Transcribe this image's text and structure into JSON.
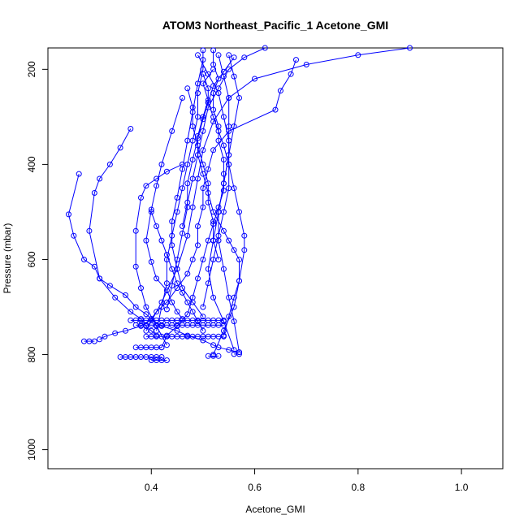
{
  "chart_data": {
    "type": "line",
    "title": "ATOM3 Northeast_Pacific_1 Acetone_GMI",
    "xlabel": "Acetone_GMI",
    "ylabel": "Pressure (mbar)",
    "xlim": [
      0.2,
      1.08
    ],
    "ylim": [
      1040,
      155
    ],
    "y_reversed": true,
    "x_ticks": [
      0.4,
      0.6,
      0.8,
      1.0
    ],
    "x_tick_labels": [
      "0.4",
      "0.6",
      "0.8",
      "1.0"
    ],
    "y_ticks": [
      200,
      400,
      600,
      800,
      1000
    ],
    "y_tick_labels": [
      "200",
      "400",
      "600",
      "800",
      "1000"
    ],
    "color": "#0000ff",
    "marker": "open-circle",
    "grid": false,
    "series": [
      {
        "x": [
          0.68,
          0.67,
          0.65,
          0.64,
          0.55,
          0.52,
          0.51,
          0.5,
          0.5,
          0.49,
          0.49,
          0.48,
          0.47,
          0.45,
          0.43,
          0.41,
          0.4,
          0.38,
          0.35,
          0.33,
          0.31,
          0.3
        ],
        "y": [
          180,
          210,
          245,
          285,
          330,
          370,
          410,
          450,
          490,
          530,
          570,
          600,
          630,
          660,
          690,
          710,
          725,
          740,
          750,
          755,
          762,
          768
        ]
      },
      {
        "x": [
          0.26,
          0.24,
          0.25,
          0.27,
          0.29,
          0.3,
          0.32,
          0.35,
          0.37,
          0.39,
          0.4,
          0.42,
          0.45,
          0.47,
          0.5,
          0.52,
          0.53,
          0.55,
          0.57
        ],
        "y": [
          420,
          505,
          550,
          600,
          615,
          640,
          655,
          675,
          700,
          715,
          725,
          740,
          750,
          760,
          770,
          780,
          785,
          790,
          795
        ]
      },
      {
        "x": [
          0.52,
          0.5,
          0.51,
          0.5,
          0.49,
          0.49,
          0.5,
          0.51,
          0.52,
          0.54,
          0.55,
          0.56,
          0.57,
          0.57,
          0.56,
          0.55,
          0.54
        ],
        "y": [
          200,
          230,
          265,
          300,
          340,
          380,
          420,
          460,
          500,
          540,
          560,
          580,
          600,
          645,
          680,
          720,
          760
        ]
      },
      {
        "x": [
          0.52,
          0.52,
          0.53,
          0.52,
          0.52,
          0.53,
          0.53,
          0.54,
          0.54,
          0.54,
          0.53,
          0.52,
          0.51,
          0.5,
          0.49,
          0.48,
          0.47,
          0.45,
          0.43,
          0.42
        ],
        "y": [
          160,
          190,
          220,
          250,
          285,
          320,
          350,
          390,
          420,
          455,
          490,
          525,
          560,
          600,
          640,
          680,
          715,
          740,
          760,
          785
        ]
      },
      {
        "x": [
          0.5,
          0.5,
          0.49,
          0.49,
          0.48,
          0.47,
          0.46,
          0.45,
          0.44,
          0.43,
          0.43,
          0.42,
          0.41
        ],
        "y": [
          160,
          200,
          250,
          300,
          350,
          400,
          450,
          500,
          550,
          600,
          650,
          700,
          750
        ]
      },
      {
        "x": [
          0.36,
          0.34,
          0.32,
          0.3,
          0.29,
          0.28,
          0.3,
          0.33,
          0.36,
          0.38,
          0.39,
          0.4,
          0.41
        ],
        "y": [
          325,
          365,
          400,
          430,
          460,
          540,
          640,
          680,
          710,
          725,
          740,
          750,
          760
        ]
      },
      {
        "x": [
          0.46,
          0.43,
          0.41,
          0.39,
          0.38,
          0.37,
          0.37,
          0.38,
          0.39,
          0.41,
          0.43
        ],
        "y": [
          400,
          415,
          430,
          445,
          470,
          540,
          615,
          660,
          700,
          740,
          780
        ]
      },
      {
        "x": [
          0.46,
          0.44,
          0.42,
          0.41,
          0.4,
          0.39,
          0.4,
          0.41,
          0.43,
          0.44,
          0.45,
          0.46
        ],
        "y": [
          260,
          330,
          400,
          445,
          495,
          560,
          605,
          640,
          665,
          690,
          710,
          725
        ]
      },
      {
        "x": [
          0.5,
          0.49,
          0.48,
          0.47,
          0.46,
          0.45,
          0.44,
          0.44,
          0.45,
          0.46,
          0.48,
          0.5
        ],
        "y": [
          180,
          230,
          290,
          350,
          410,
          470,
          520,
          570,
          620,
          660,
          690,
          720
        ]
      },
      {
        "x": [
          0.53,
          0.54,
          0.55,
          0.55,
          0.55,
          0.54,
          0.53,
          0.52,
          0.51,
          0.52,
          0.54,
          0.56
        ],
        "y": [
          170,
          215,
          260,
          320,
          380,
          440,
          500,
          560,
          620,
          680,
          730,
          790
        ]
      },
      {
        "x": [
          0.55,
          0.56,
          0.57,
          0.56,
          0.55,
          0.54,
          0.53,
          0.53,
          0.54,
          0.55,
          0.56,
          0.57
        ],
        "y": [
          170,
          215,
          260,
          320,
          380,
          440,
          500,
          560,
          620,
          680,
          730,
          795
        ]
      },
      {
        "x": [
          0.5,
          0.51,
          0.51,
          0.52,
          0.53,
          0.54,
          0.55,
          0.56,
          0.57,
          0.58,
          0.58,
          0.57,
          0.56,
          0.54,
          0.52
        ],
        "y": [
          210,
          240,
          270,
          300,
          330,
          360,
          400,
          450,
          500,
          550,
          580,
          645,
          700,
          750,
          800
        ]
      },
      {
        "x": [
          0.47,
          0.48,
          0.48,
          0.49,
          0.5,
          0.51,
          0.51,
          0.52,
          0.52,
          0.53
        ],
        "y": [
          240,
          280,
          320,
          360,
          400,
          440,
          480,
          520,
          560,
          600
        ]
      },
      {
        "x": [
          0.9,
          0.8,
          0.7,
          0.6,
          0.55,
          0.52,
          0.5,
          0.49,
          0.48,
          0.47,
          0.45,
          0.42,
          0.39
        ],
        "y": [
          155,
          170,
          190,
          220,
          260,
          310,
          370,
          430,
          490,
          550,
          620,
          690,
          750
        ]
      },
      {
        "x": [
          0.62,
          0.58,
          0.55,
          0.53,
          0.51,
          0.5,
          0.49,
          0.48,
          0.47,
          0.46
        ],
        "y": [
          155,
          175,
          200,
          240,
          280,
          330,
          380,
          430,
          480,
          530
        ]
      },
      {
        "x": [
          0.56,
          0.54,
          0.52,
          0.51,
          0.5,
          0.49,
          0.48,
          0.47,
          0.47,
          0.46,
          0.45,
          0.44,
          0.43
        ],
        "y": [
          175,
          205,
          235,
          270,
          305,
          345,
          390,
          440,
          490,
          545,
          600,
          655,
          705
        ]
      },
      {
        "x": [
          0.49,
          0.51,
          0.53,
          0.54,
          0.55,
          0.55,
          0.55,
          0.54,
          0.53,
          0.52,
          0.51,
          0.5
        ],
        "y": [
          170,
          210,
          250,
          300,
          350,
          400,
          450,
          500,
          550,
          600,
          650,
          700
        ]
      },
      {
        "x": [
          0.4,
          0.41,
          0.42,
          0.43,
          0.44,
          0.45,
          0.46,
          0.47,
          0.48,
          0.49,
          0.5
        ],
        "y": [
          500,
          530,
          560,
          590,
          620,
          650,
          670,
          690,
          710,
          730,
          750
        ]
      },
      {
        "x": [
          0.36,
          0.37,
          0.38,
          0.39,
          0.4,
          0.41,
          0.42,
          0.43,
          0.44,
          0.45,
          0.46,
          0.47,
          0.48,
          0.49,
          0.5,
          0.51,
          0.52,
          0.53,
          0.54
        ],
        "y": [
          728,
          728,
          728,
          728,
          728,
          728,
          728,
          728,
          728,
          728,
          728,
          728,
          728,
          728,
          728,
          728,
          728,
          728,
          728
        ]
      },
      {
        "x": [
          0.37,
          0.38,
          0.39,
          0.4,
          0.41,
          0.42,
          0.43,
          0.44,
          0.45,
          0.46,
          0.47,
          0.48,
          0.49,
          0.5,
          0.51,
          0.52,
          0.53,
          0.54
        ],
        "y": [
          738,
          738,
          738,
          738,
          738,
          738,
          738,
          738,
          738,
          738,
          738,
          738,
          738,
          738,
          738,
          738,
          738,
          738
        ]
      },
      {
        "x": [
          0.39,
          0.4,
          0.41,
          0.42,
          0.43,
          0.44,
          0.45,
          0.46,
          0.47,
          0.48,
          0.49,
          0.5,
          0.51,
          0.52,
          0.53,
          0.54
        ],
        "y": [
          762,
          762,
          762,
          762,
          762,
          762,
          762,
          762,
          762,
          762,
          762,
          762,
          762,
          762,
          762,
          762
        ]
      },
      {
        "x": [
          0.34,
          0.35,
          0.36,
          0.37,
          0.38,
          0.39,
          0.4,
          0.41,
          0.42
        ],
        "y": [
          805,
          805,
          805,
          805,
          805,
          805,
          805,
          805,
          805
        ]
      },
      {
        "x": [
          0.37,
          0.38,
          0.39,
          0.4,
          0.41,
          0.42
        ],
        "y": [
          785,
          785,
          785,
          785,
          785,
          785
        ]
      },
      {
        "x": [
          0.4,
          0.41,
          0.42,
          0.43
        ],
        "y": [
          812,
          812,
          812,
          812
        ]
      },
      {
        "x": [
          0.51,
          0.52,
          0.53
        ],
        "y": [
          803,
          803,
          803
        ]
      },
      {
        "x": [
          0.27,
          0.28,
          0.29
        ],
        "y": [
          772,
          772,
          772
        ]
      },
      {
        "x": [
          0.56,
          0.57
        ],
        "y": [
          799,
          799
        ]
      }
    ]
  }
}
